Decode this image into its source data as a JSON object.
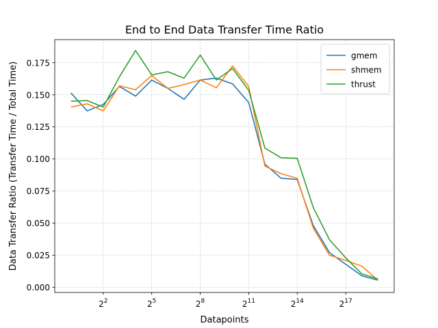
{
  "chart_data": {
    "type": "line",
    "title": "End to End Data Transfer Time Ratio",
    "xlabel": "Datapoints",
    "ylabel": "Data Transfer Ratio (Transfer Time / Total Time)",
    "x_scale": "log2",
    "x": [
      1,
      2,
      4,
      8,
      16,
      32,
      64,
      128,
      256,
      512,
      1024,
      2048,
      4096,
      8192,
      16384,
      32768,
      65536,
      131072,
      262144,
      524288
    ],
    "xlim": [
      0.5,
      1048576
    ],
    "ylim": [
      -0.004,
      0.193
    ],
    "xticks": [
      {
        "value": 4,
        "base": "2",
        "exp": "2"
      },
      {
        "value": 32,
        "base": "2",
        "exp": "5"
      },
      {
        "value": 256,
        "base": "2",
        "exp": "8"
      },
      {
        "value": 2048,
        "base": "2",
        "exp": "11"
      },
      {
        "value": 16384,
        "base": "2",
        "exp": "14"
      },
      {
        "value": 131072,
        "base": "2",
        "exp": "17"
      }
    ],
    "yticks": [
      {
        "value": 0.0,
        "label": "0.000"
      },
      {
        "value": 0.025,
        "label": "0.025"
      },
      {
        "value": 0.05,
        "label": "0.050"
      },
      {
        "value": 0.075,
        "label": "0.075"
      },
      {
        "value": 0.1,
        "label": "0.100"
      },
      {
        "value": 0.125,
        "label": "0.125"
      },
      {
        "value": 0.15,
        "label": "0.150"
      },
      {
        "value": 0.175,
        "label": "0.175"
      }
    ],
    "grid": true,
    "legend_position": "top-right",
    "series": [
      {
        "name": "gmem",
        "color": "#1f77b4",
        "values": [
          0.1515,
          0.1375,
          0.1425,
          0.1565,
          0.149,
          0.1615,
          0.155,
          0.1465,
          0.1615,
          0.163,
          0.1585,
          0.144,
          0.096,
          0.085,
          0.084,
          0.048,
          0.027,
          0.018,
          0.009,
          0.0055
        ]
      },
      {
        "name": "shmem",
        "color": "#ff7f0e",
        "values": [
          0.1405,
          0.143,
          0.1375,
          0.157,
          0.154,
          0.165,
          0.155,
          0.158,
          0.1615,
          0.1555,
          0.1725,
          0.1565,
          0.0945,
          0.0885,
          0.085,
          0.046,
          0.025,
          0.021,
          0.0165,
          0.0055
        ]
      },
      {
        "name": "thrust",
        "color": "#2ca02c",
        "values": [
          0.145,
          0.1455,
          0.1405,
          0.164,
          0.1845,
          0.1655,
          0.168,
          0.163,
          0.181,
          0.1615,
          0.1705,
          0.1535,
          0.1085,
          0.101,
          0.1005,
          0.062,
          0.037,
          0.023,
          0.0105,
          0.0065
        ]
      }
    ]
  }
}
